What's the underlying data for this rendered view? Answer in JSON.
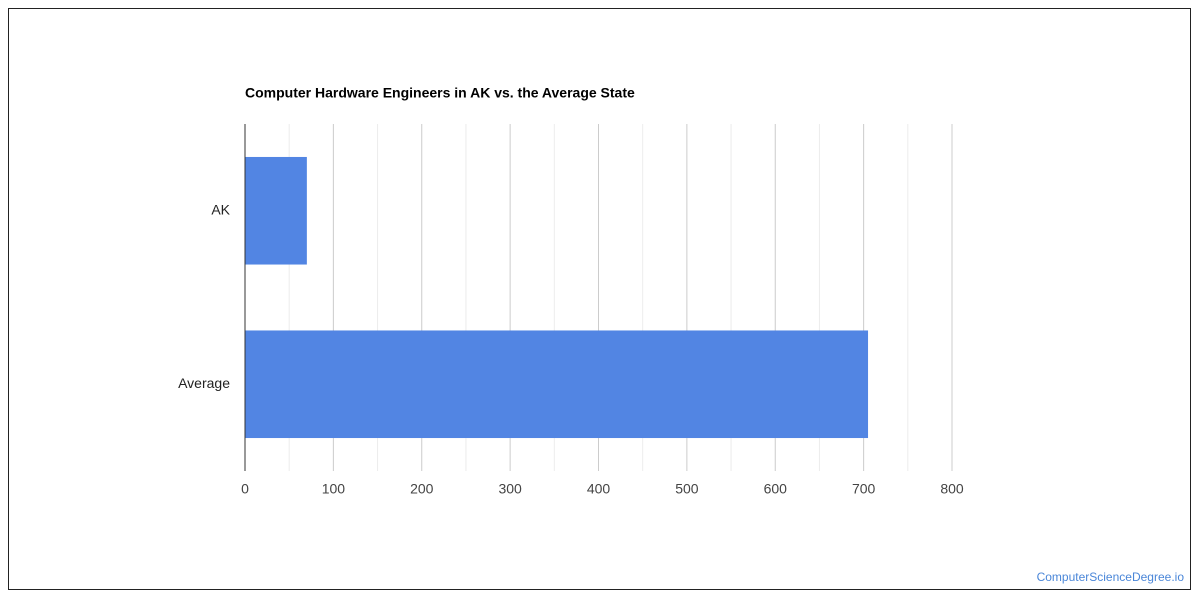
{
  "chart_data": {
    "type": "hbar",
    "title": "Computer Hardware Engineers in AK vs. the Average State",
    "categories": [
      "AK",
      "Average"
    ],
    "values": [
      70,
      705
    ],
    "color": "#5285e3",
    "xlim": [
      0,
      800
    ],
    "xticks": [
      0,
      100,
      200,
      300,
      400,
      500,
      600,
      700,
      800
    ],
    "xminor": [
      50,
      150,
      250,
      350,
      450,
      550,
      650,
      750
    ],
    "grid": true,
    "source": "ComputerScienceDegree.io"
  }
}
